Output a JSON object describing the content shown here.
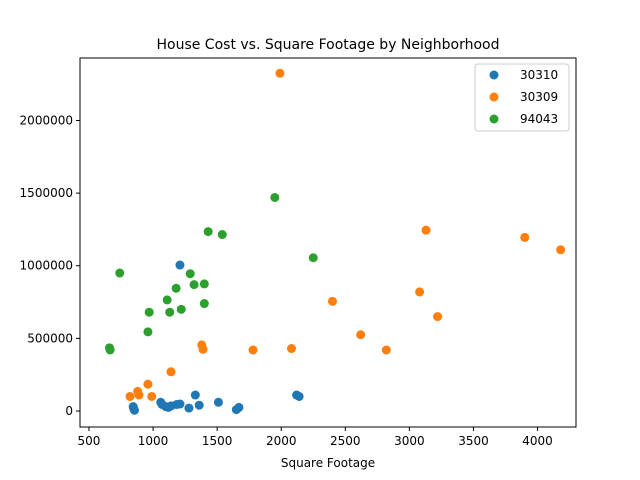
{
  "chart_data": {
    "type": "scatter",
    "title": "House Cost vs. Square Footage by Neighborhood",
    "xlabel": "Square Footage",
    "ylabel": "",
    "xlim": [
      430,
      4300
    ],
    "ylim": [
      -110000,
      2430000
    ],
    "xticks": [
      500,
      1000,
      1500,
      2000,
      2500,
      3000,
      3500,
      4000
    ],
    "yticks": [
      0,
      500000,
      1000000,
      1500000,
      2000000
    ],
    "grid": false,
    "legend_position": "top-right",
    "series": [
      {
        "name": "30310",
        "color": "#1f77b4",
        "points": [
          [
            845,
            30000
          ],
          [
            850,
            15000
          ],
          [
            855,
            5000
          ],
          [
            1060,
            60000
          ],
          [
            1070,
            45000
          ],
          [
            1100,
            30000
          ],
          [
            1120,
            25000
          ],
          [
            1140,
            35000
          ],
          [
            1185,
            45000
          ],
          [
            1210,
            48000
          ],
          [
            1210,
            1005000
          ],
          [
            1280,
            20000
          ],
          [
            1330,
            110000
          ],
          [
            1360,
            40000
          ],
          [
            1510,
            60000
          ],
          [
            1650,
            10000
          ],
          [
            1670,
            25000
          ],
          [
            2120,
            110000
          ],
          [
            2140,
            100000
          ]
        ]
      },
      {
        "name": "30309",
        "color": "#ff7f0e",
        "points": [
          [
            820,
            100000
          ],
          [
            880,
            135000
          ],
          [
            890,
            110000
          ],
          [
            960,
            185000
          ],
          [
            990,
            100000
          ],
          [
            1140,
            270000
          ],
          [
            1380,
            455000
          ],
          [
            1390,
            425000
          ],
          [
            1780,
            420000
          ],
          [
            1990,
            2325000
          ],
          [
            2080,
            430000
          ],
          [
            2400,
            755000
          ],
          [
            2620,
            525000
          ],
          [
            2820,
            420000
          ],
          [
            3080,
            820000
          ],
          [
            3130,
            1245000
          ],
          [
            3220,
            650000
          ],
          [
            3900,
            1195000
          ],
          [
            4180,
            1110000
          ]
        ]
      },
      {
        "name": "94043",
        "color": "#2ca02c",
        "points": [
          [
            660,
            435000
          ],
          [
            665,
            420000
          ],
          [
            740,
            950000
          ],
          [
            960,
            545000
          ],
          [
            970,
            680000
          ],
          [
            1110,
            765000
          ],
          [
            1130,
            680000
          ],
          [
            1180,
            845000
          ],
          [
            1220,
            700000
          ],
          [
            1290,
            945000
          ],
          [
            1320,
            870000
          ],
          [
            1400,
            740000
          ],
          [
            1400,
            875000
          ],
          [
            1430,
            1235000
          ],
          [
            1540,
            1215000
          ],
          [
            1950,
            1470000
          ],
          [
            2250,
            1055000
          ]
        ]
      }
    ]
  }
}
